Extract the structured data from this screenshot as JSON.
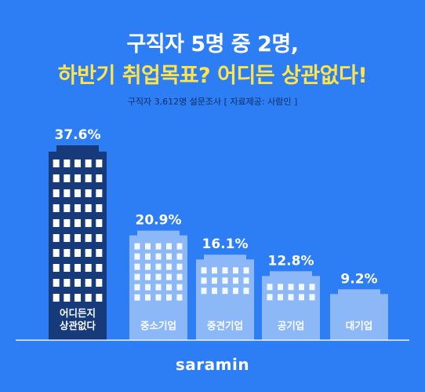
{
  "header": {
    "title_line1": "구직자 5명 중 2명,",
    "title_line2": "하반기 취업목표? 어디든 상관없다!",
    "subtitle": "구직자 3,612명 설문조사 [ 자료제공: 사람인 ]"
  },
  "chart_data": {
    "type": "bar",
    "categories": [
      "어디든지\n상관없다",
      "중소기업",
      "중견기업",
      "공기업",
      "대기업"
    ],
    "values": [
      37.6,
      20.9,
      16.1,
      12.8,
      9.2
    ],
    "value_labels": [
      "37.6%",
      "20.9%",
      "16.1%",
      "12.8%",
      "9.2%"
    ],
    "highlight_index": 0,
    "colors": {
      "highlight": "#163a7a",
      "normal": "#8db8f7",
      "window": "#ffffff",
      "background": "#2d7df4"
    },
    "grid": false,
    "legend": "none"
  },
  "footer": {
    "brand": "saramin"
  }
}
